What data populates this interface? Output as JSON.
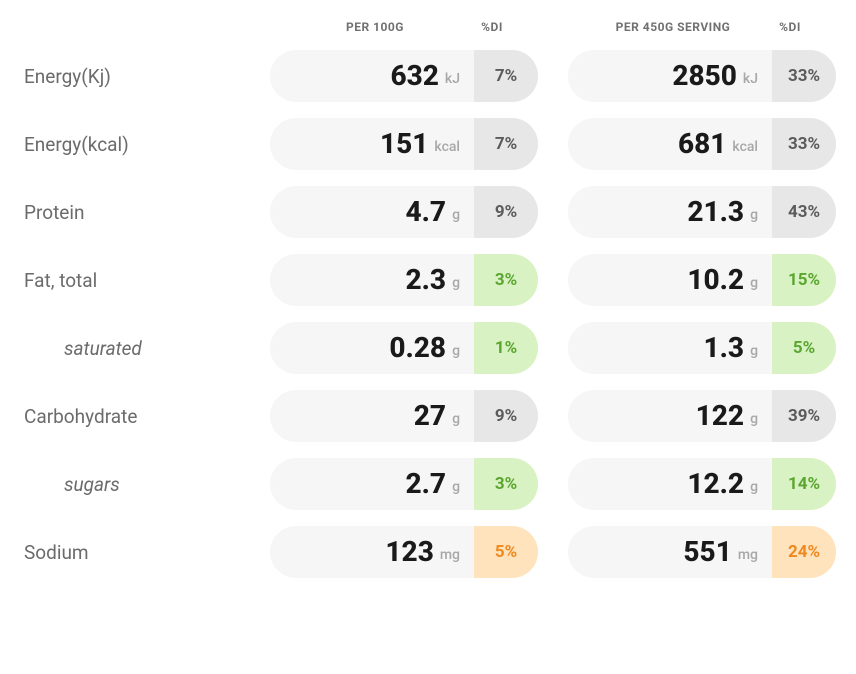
{
  "headers": {
    "col1_left": "PER 100G",
    "col1_right": "%DI",
    "col2_left": "PER 450G SERVING",
    "col2_right": "%DI"
  },
  "di_classes": {
    "grey": "di-grey",
    "green": "di-green",
    "orange": "di-orange"
  },
  "rows": [
    {
      "label": "Energy(Kj)",
      "indent": false,
      "c1": {
        "val": "632",
        "unit": "kJ",
        "di": "7%",
        "di_style": "grey"
      },
      "c2": {
        "val": "2850",
        "unit": "kJ",
        "di": "33%",
        "di_style": "grey"
      }
    },
    {
      "label": "Energy(kcal)",
      "indent": false,
      "c1": {
        "val": "151",
        "unit": "kcal",
        "di": "7%",
        "di_style": "grey"
      },
      "c2": {
        "val": "681",
        "unit": "kcal",
        "di": "33%",
        "di_style": "grey"
      }
    },
    {
      "label": "Protein",
      "indent": false,
      "c1": {
        "val": "4.7",
        "unit": "g",
        "di": "9%",
        "di_style": "grey"
      },
      "c2": {
        "val": "21.3",
        "unit": "g",
        "di": "43%",
        "di_style": "grey"
      }
    },
    {
      "label": "Fat, total",
      "indent": false,
      "c1": {
        "val": "2.3",
        "unit": "g",
        "di": "3%",
        "di_style": "green"
      },
      "c2": {
        "val": "10.2",
        "unit": "g",
        "di": "15%",
        "di_style": "green"
      }
    },
    {
      "label": "saturated",
      "indent": true,
      "c1": {
        "val": "0.28",
        "unit": "g",
        "di": "1%",
        "di_style": "green"
      },
      "c2": {
        "val": "1.3",
        "unit": "g",
        "di": "5%",
        "di_style": "green"
      }
    },
    {
      "label": "Carbohydrate",
      "indent": false,
      "c1": {
        "val": "27",
        "unit": "g",
        "di": "9%",
        "di_style": "grey"
      },
      "c2": {
        "val": "122",
        "unit": "g",
        "di": "39%",
        "di_style": "grey"
      }
    },
    {
      "label": "sugars",
      "indent": true,
      "c1": {
        "val": "2.7",
        "unit": "g",
        "di": "3%",
        "di_style": "green"
      },
      "c2": {
        "val": "12.2",
        "unit": "g",
        "di": "14%",
        "di_style": "green"
      }
    },
    {
      "label": "Sodium",
      "indent": false,
      "c1": {
        "val": "123",
        "unit": "mg",
        "di": "5%",
        "di_style": "orange"
      },
      "c2": {
        "val": "551",
        "unit": "mg",
        "di": "24%",
        "di_style": "orange"
      }
    }
  ]
}
